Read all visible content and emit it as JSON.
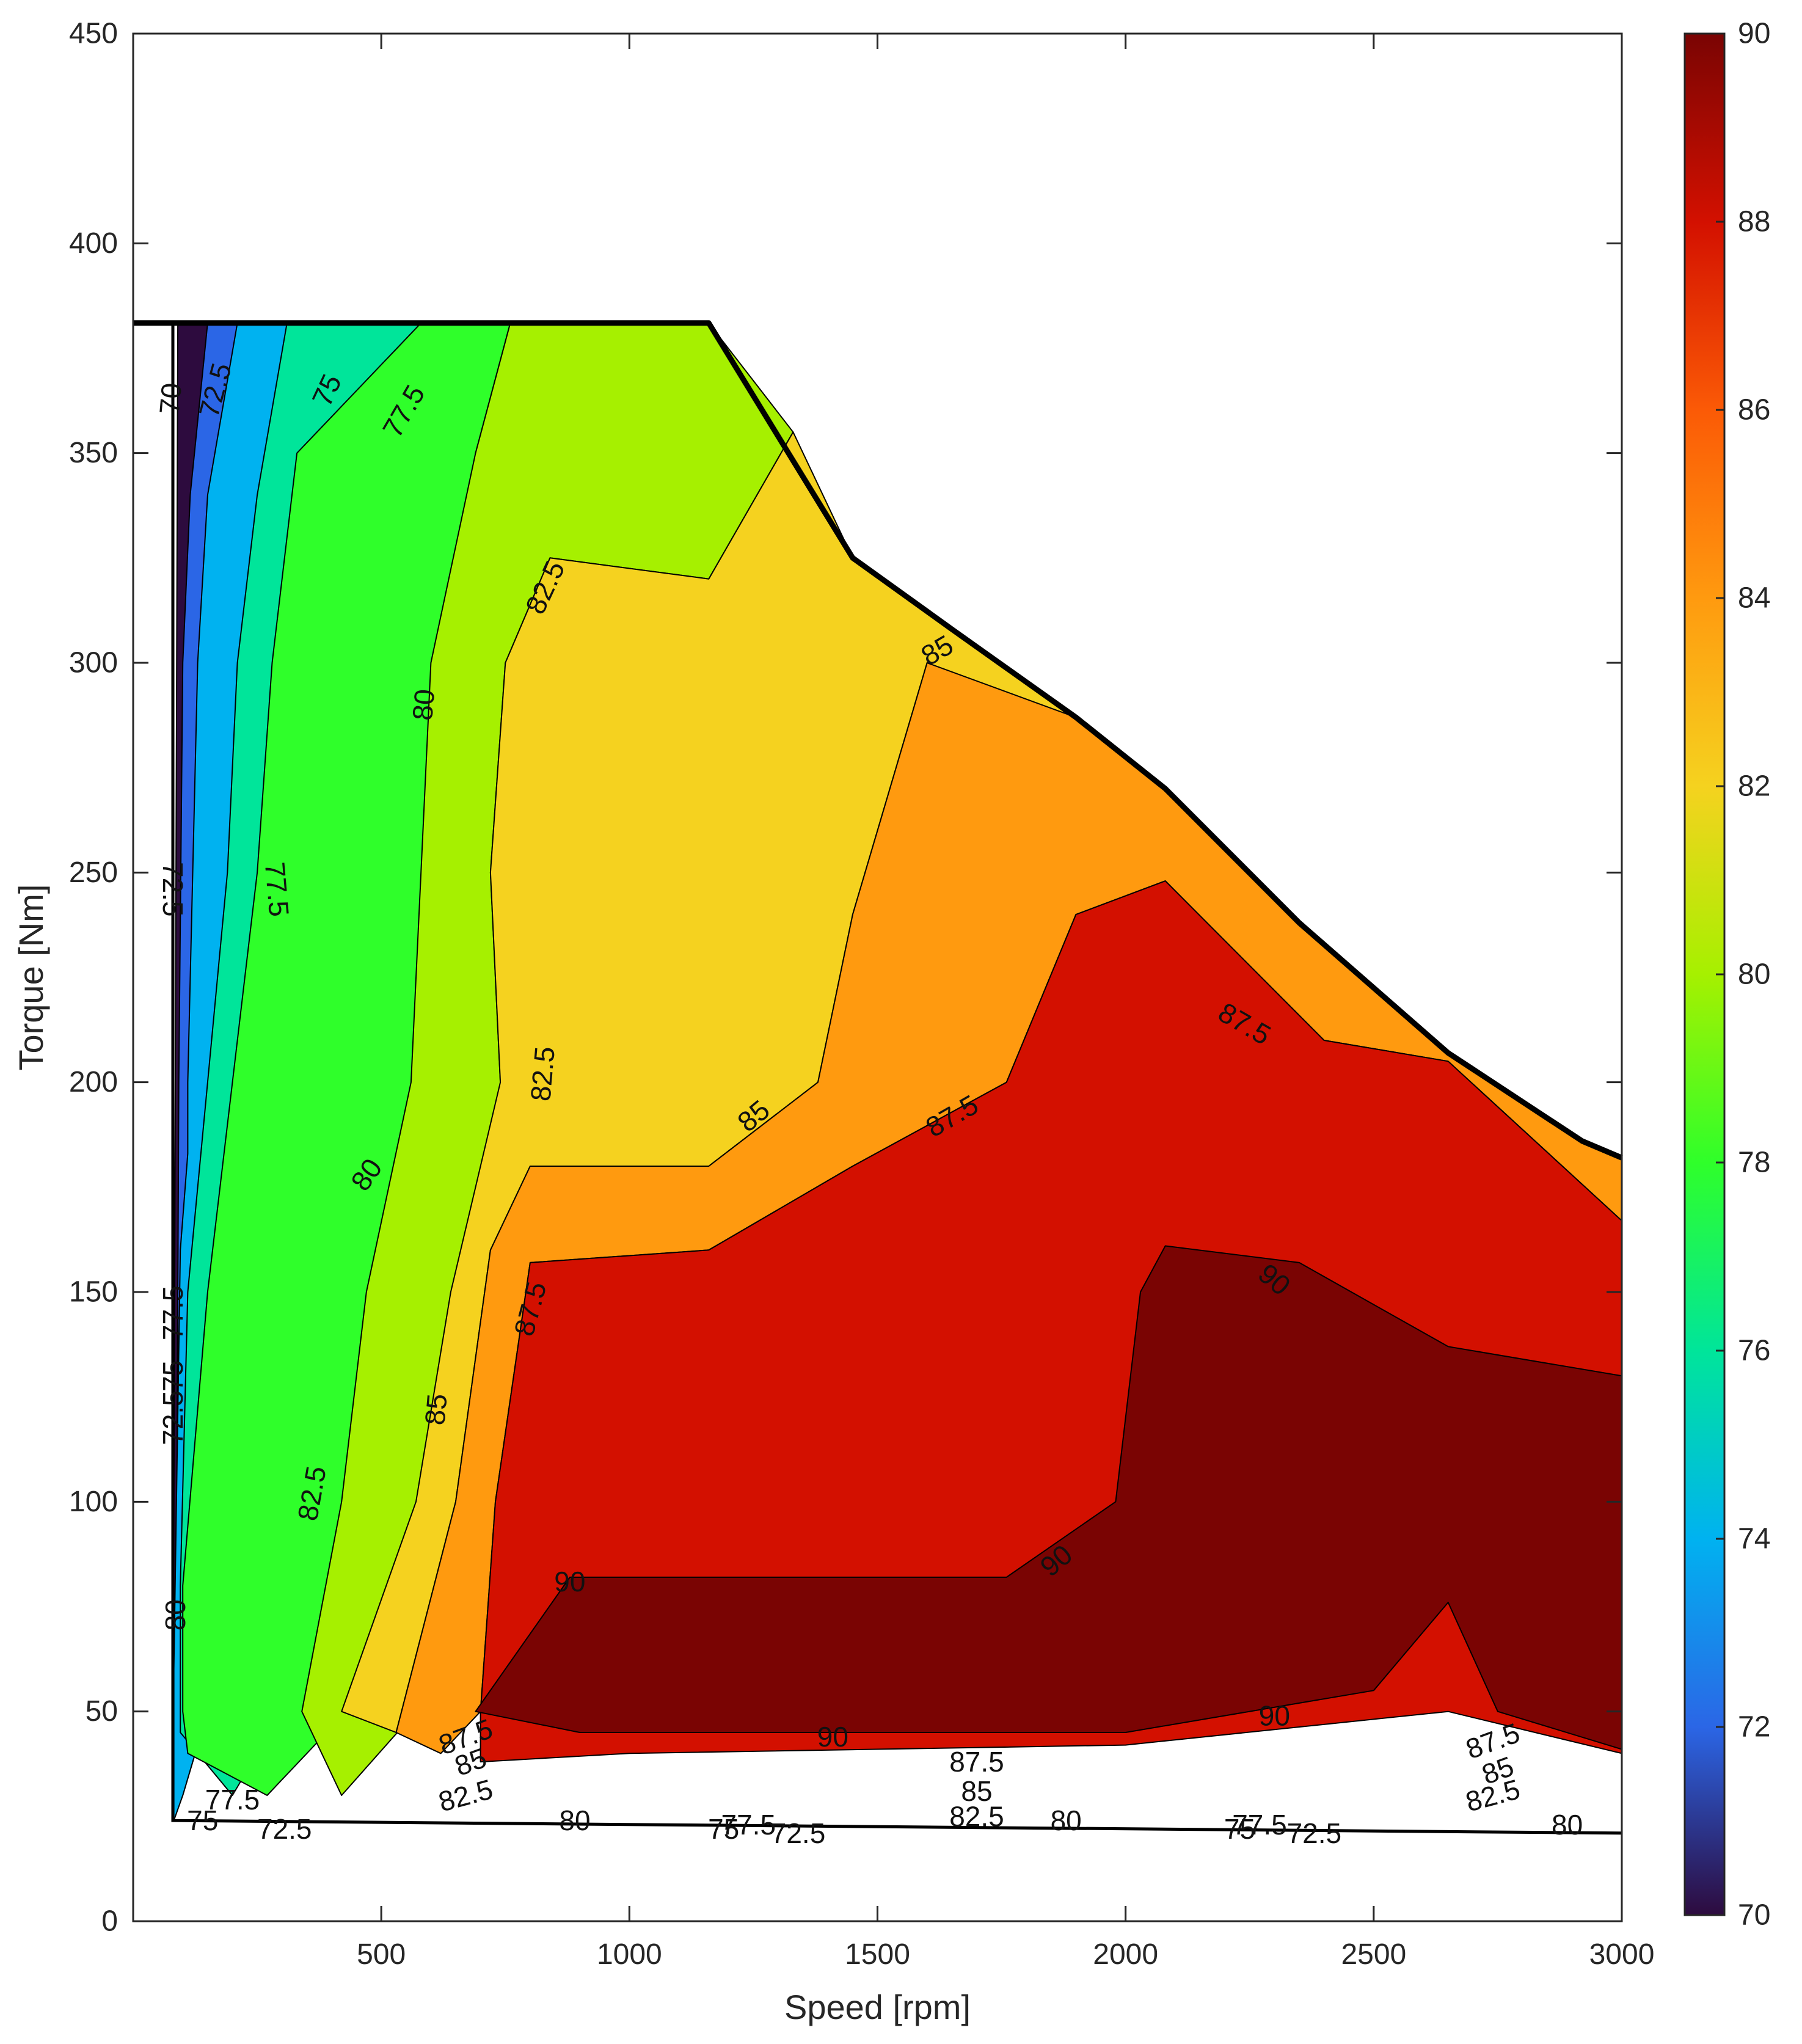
{
  "chart_data": {
    "type": "contour",
    "xlabel": "Speed [rpm]",
    "ylabel": "Torque [Nm]",
    "xlim": [
      0,
      3000
    ],
    "ylim": [
      0,
      450
    ],
    "x_ticks": [
      "500",
      "1000",
      "1500",
      "2000",
      "2500",
      "3000"
    ],
    "y_ticks": [
      "0",
      "50",
      "100",
      "150",
      "200",
      "250",
      "300",
      "350",
      "400",
      "450"
    ],
    "colorbar": {
      "range": [
        70,
        90
      ],
      "ticks": [
        "70",
        "72",
        "74",
        "76",
        "78",
        "80",
        "82",
        "84",
        "86",
        "88",
        "90"
      ],
      "colormap": [
        "#2d0b3e",
        "#2b66e6",
        "#00b2f0",
        "#00e59a",
        "#2fff2a",
        "#a6f000",
        "#f5d21f",
        "#ff9a0f",
        "#fb5a06",
        "#d31000",
        "#7a0403"
      ]
    },
    "grid": false,
    "max_torque_envelope": [
      [
        0,
        381
      ],
      [
        1160,
        381
      ],
      [
        1450,
        325
      ],
      [
        1650,
        308
      ],
      [
        1900,
        287
      ],
      [
        2080,
        270
      ],
      [
        2350,
        238
      ],
      [
        2650,
        207
      ],
      [
        2920,
        186
      ],
      [
        3000,
        182
      ]
    ],
    "regions": [
      {
        "level": 70,
        "color": "#2d0b3e",
        "polygon": [
          [
            80,
            25
          ],
          [
            90,
            381
          ],
          [
            210,
            381
          ],
          [
            150,
            340
          ],
          [
            115,
            300
          ],
          [
            95,
            200
          ],
          [
            90,
            100
          ],
          [
            85,
            50
          ]
        ]
      },
      {
        "level": 72.5,
        "color": "#2b66e6",
        "polygon": [
          [
            90,
            381
          ],
          [
            420,
            381
          ],
          [
            330,
            350
          ],
          [
            280,
            300
          ],
          [
            260,
            250
          ],
          [
            240,
            200
          ],
          [
            210,
            150
          ],
          [
            180,
            100
          ],
          [
            150,
            50
          ],
          [
            100,
            30
          ],
          [
            85,
            30
          ],
          [
            88,
            100
          ],
          [
            92,
            200
          ],
          [
            100,
            300
          ],
          [
            115,
            340
          ],
          [
            150,
            381
          ]
        ]
      },
      {
        "level": 75,
        "color": "#00b2f0",
        "polygon": [
          [
            150,
            381
          ],
          [
            420,
            381
          ],
          [
            330,
            350
          ],
          [
            280,
            300
          ],
          [
            260,
            250
          ],
          [
            240,
            200
          ],
          [
            210,
            150
          ],
          [
            180,
            100
          ],
          [
            150,
            50
          ],
          [
            100,
            30
          ],
          [
            82,
            24
          ],
          [
            82,
            40
          ],
          [
            82,
            60
          ],
          [
            95,
            160
          ],
          [
            110,
            183
          ],
          [
            110,
            200
          ],
          [
            120,
            250
          ],
          [
            130,
            300
          ],
          [
            150,
            340
          ],
          [
            210,
            381
          ]
        ]
      },
      {
        "level": 77.5,
        "color": "#00e59a",
        "polygon": [
          [
            370,
            381
          ],
          [
            580,
            381
          ],
          [
            500,
            340
          ],
          [
            440,
            300
          ],
          [
            410,
            250
          ],
          [
            400,
            200
          ],
          [
            370,
            150
          ],
          [
            320,
            100
          ],
          [
            300,
            50
          ],
          [
            200,
            30
          ],
          [
            95,
            45
          ],
          [
            95,
            80
          ],
          [
            110,
            150
          ],
          [
            150,
            200
          ],
          [
            190,
            250
          ],
          [
            210,
            300
          ],
          [
            250,
            340
          ],
          [
            310,
            381
          ]
        ]
      },
      {
        "level": 80,
        "color": "#2fff2a",
        "polygon": [
          [
            580,
            381
          ],
          [
            760,
            381
          ],
          [
            690,
            350
          ],
          [
            630,
            300
          ],
          [
            600,
            250
          ],
          [
            620,
            200
          ],
          [
            540,
            150
          ],
          [
            470,
            100
          ],
          [
            430,
            50
          ],
          [
            270,
            30
          ],
          [
            110,
            40
          ],
          [
            100,
            50
          ],
          [
            100,
            80
          ],
          [
            150,
            150
          ],
          [
            200,
            200
          ],
          [
            250,
            250
          ],
          [
            280,
            300
          ],
          [
            330,
            350
          ]
        ]
      },
      {
        "level": 82.5,
        "color": "#a6f000",
        "polygon": [
          [
            760,
            381
          ],
          [
            1160,
            381
          ],
          [
            1330,
            355
          ],
          [
            1160,
            320
          ],
          [
            840,
            325
          ],
          [
            750,
            300
          ],
          [
            720,
            250
          ],
          [
            740,
            200
          ],
          [
            690,
            150
          ],
          [
            610,
            100
          ],
          [
            570,
            50
          ],
          [
            420,
            30
          ],
          [
            340,
            50
          ],
          [
            420,
            100
          ],
          [
            470,
            150
          ],
          [
            560,
            200
          ],
          [
            580,
            250
          ],
          [
            600,
            300
          ],
          [
            690,
            350
          ]
        ]
      },
      {
        "level": 85,
        "color": "#f5d21f",
        "polygon": [
          [
            840,
            325
          ],
          [
            1160,
            320
          ],
          [
            1330,
            355
          ],
          [
            1450,
            325
          ],
          [
            1650,
            308
          ],
          [
            1900,
            287
          ],
          [
            2080,
            270
          ],
          [
            1600,
            300
          ],
          [
            1450,
            240
          ],
          [
            1380,
            200
          ],
          [
            1160,
            180
          ],
          [
            800,
            180
          ],
          [
            720,
            160
          ],
          [
            650,
            100
          ],
          [
            530,
            45
          ],
          [
            420,
            50
          ],
          [
            570,
            100
          ],
          [
            640,
            150
          ],
          [
            740,
            200
          ],
          [
            720,
            250
          ],
          [
            750,
            300
          ]
        ]
      },
      {
        "level": 87.5,
        "color": "#ff9a0f",
        "polygon": [
          [
            1600,
            300
          ],
          [
            1900,
            287
          ],
          [
            2080,
            270
          ],
          [
            2350,
            238
          ],
          [
            2650,
            207
          ],
          [
            2920,
            186
          ],
          [
            3000,
            182
          ],
          [
            3000,
            167
          ],
          [
            2650,
            205
          ],
          [
            2400,
            210
          ],
          [
            2080,
            248
          ],
          [
            1900,
            240
          ],
          [
            1760,
            200
          ],
          [
            1450,
            180
          ],
          [
            1160,
            160
          ],
          [
            800,
            157
          ],
          [
            730,
            100
          ],
          [
            700,
            50
          ],
          [
            620,
            40
          ],
          [
            530,
            45
          ],
          [
            650,
            100
          ],
          [
            720,
            160
          ],
          [
            800,
            180
          ],
          [
            1160,
            180
          ],
          [
            1380,
            200
          ],
          [
            1450,
            240
          ]
        ]
      },
      {
        "level": 90,
        "color": "#d31000",
        "polygon": [
          [
            800,
            157
          ],
          [
            1160,
            160
          ],
          [
            1450,
            180
          ],
          [
            1760,
            200
          ],
          [
            1900,
            240
          ],
          [
            2080,
            248
          ],
          [
            2400,
            210
          ],
          [
            2650,
            205
          ],
          [
            3000,
            167
          ],
          [
            3000,
            40
          ],
          [
            2650,
            50
          ],
          [
            2000,
            42
          ],
          [
            1000,
            40
          ],
          [
            700,
            38
          ],
          [
            700,
            50
          ],
          [
            730,
            100
          ]
        ]
      },
      {
        "level": 92,
        "color": "#7a0403",
        "polygon": [
          [
            880,
            82
          ],
          [
            1760,
            82
          ],
          [
            1980,
            100
          ],
          [
            2030,
            150
          ],
          [
            2080,
            161
          ],
          [
            2350,
            157
          ],
          [
            2650,
            137
          ],
          [
            3000,
            130
          ],
          [
            3000,
            41
          ],
          [
            2750,
            50
          ],
          [
            2650,
            76
          ],
          [
            2500,
            55
          ],
          [
            2000,
            45
          ],
          [
            900,
            45
          ],
          [
            690,
            50
          ]
        ]
      }
    ],
    "contour_labels": [
      {
        "text": "70",
        "x": 75,
        "y": 363,
        "rotation": -85
      },
      {
        "text": "72.5",
        "x": 165,
        "y": 365,
        "rotation": -75
      },
      {
        "text": "75",
        "x": 390,
        "y": 365,
        "rotation": -65
      },
      {
        "text": "77.5",
        "x": 545,
        "y": 360,
        "rotation": -60
      },
      {
        "text": "82.5",
        "x": 830,
        "y": 318,
        "rotation": -65
      },
      {
        "text": "80",
        "x": 585,
        "y": 290,
        "rotation": -85
      },
      {
        "text": "85",
        "x": 1620,
        "y": 303,
        "rotation": -30
      },
      {
        "text": "77.5",
        "x": 290,
        "y": 246,
        "rotation": 85
      },
      {
        "text": "72.5",
        "x": 80,
        "y": 246,
        "rotation": 90
      },
      {
        "text": "82.5",
        "x": 825,
        "y": 202,
        "rotation": -85
      },
      {
        "text": "87.5",
        "x": 2240,
        "y": 214,
        "rotation": 30
      },
      {
        "text": "85",
        "x": 1250,
        "y": 192,
        "rotation": -40
      },
      {
        "text": "87.5",
        "x": 1650,
        "y": 192,
        "rotation": -30
      },
      {
        "text": "80",
        "x": 470,
        "y": 178,
        "rotation": -55
      },
      {
        "text": "90",
        "x": 2300,
        "y": 153,
        "rotation": 40
      },
      {
        "text": "87.5",
        "x": 800,
        "y": 146,
        "rotation": -75
      },
      {
        "text": "77.5",
        "x": 80,
        "y": 145,
        "rotation": -90
      },
      {
        "text": "75",
        "x": 80,
        "y": 130,
        "rotation": -90
      },
      {
        "text": "85",
        "x": 610,
        "y": 122,
        "rotation": -85
      },
      {
        "text": "72.5",
        "x": 80,
        "y": 120,
        "rotation": -90
      },
      {
        "text": "82.5",
        "x": 360,
        "y": 102,
        "rotation": -80
      },
      {
        "text": "90",
        "x": 1860,
        "y": 86,
        "rotation": -40
      },
      {
        "text": "90",
        "x": 880,
        "y": 81,
        "rotation": 0
      },
      {
        "text": "80",
        "x": 85,
        "y": 73,
        "rotation": -90
      },
      {
        "text": "90",
        "x": 2300,
        "y": 49,
        "rotation": 0
      },
      {
        "text": "87.5",
        "x": 670,
        "y": 44,
        "rotation": -20
      },
      {
        "text": "85",
        "x": 680,
        "y": 38,
        "rotation": -20
      },
      {
        "text": "87.5",
        "x": 2740,
        "y": 43,
        "rotation": -20
      },
      {
        "text": "85",
        "x": 2750,
        "y": 36,
        "rotation": -20
      },
      {
        "text": "90",
        "x": 1410,
        "y": 44,
        "rotation": 0
      },
      {
        "text": "87.5",
        "x": 1700,
        "y": 38,
        "rotation": 0
      },
      {
        "text": "85",
        "x": 1700,
        "y": 31,
        "rotation": 0
      },
      {
        "text": "82.5",
        "x": 670,
        "y": 30,
        "rotation": -15
      },
      {
        "text": "82.5",
        "x": 1700,
        "y": 25,
        "rotation": 0
      },
      {
        "text": "82.5",
        "x": 2740,
        "y": 30,
        "rotation": -15
      },
      {
        "text": "80",
        "x": 890,
        "y": 24,
        "rotation": 0
      },
      {
        "text": "80",
        "x": 1880,
        "y": 24,
        "rotation": 0
      },
      {
        "text": "80",
        "x": 2890,
        "y": 23,
        "rotation": 0
      },
      {
        "text": "77.5",
        "x": 200,
        "y": 29,
        "rotation": 0
      },
      {
        "text": "75",
        "x": 140,
        "y": 24,
        "rotation": 0
      },
      {
        "text": "72.5",
        "x": 305,
        "y": 22,
        "rotation": 0
      },
      {
        "text": "75",
        "x": 1190,
        "y": 22,
        "rotation": 0
      },
      {
        "text": "77.5",
        "x": 1240,
        "y": 23,
        "rotation": 0
      },
      {
        "text": "72.5",
        "x": 1340,
        "y": 21,
        "rotation": 0
      },
      {
        "text": "75",
        "x": 2230,
        "y": 22,
        "rotation": 0
      },
      {
        "text": "77.5",
        "x": 2270,
        "y": 23,
        "rotation": 0
      },
      {
        "text": "72.5",
        "x": 2380,
        "y": 21,
        "rotation": 0
      }
    ]
  }
}
